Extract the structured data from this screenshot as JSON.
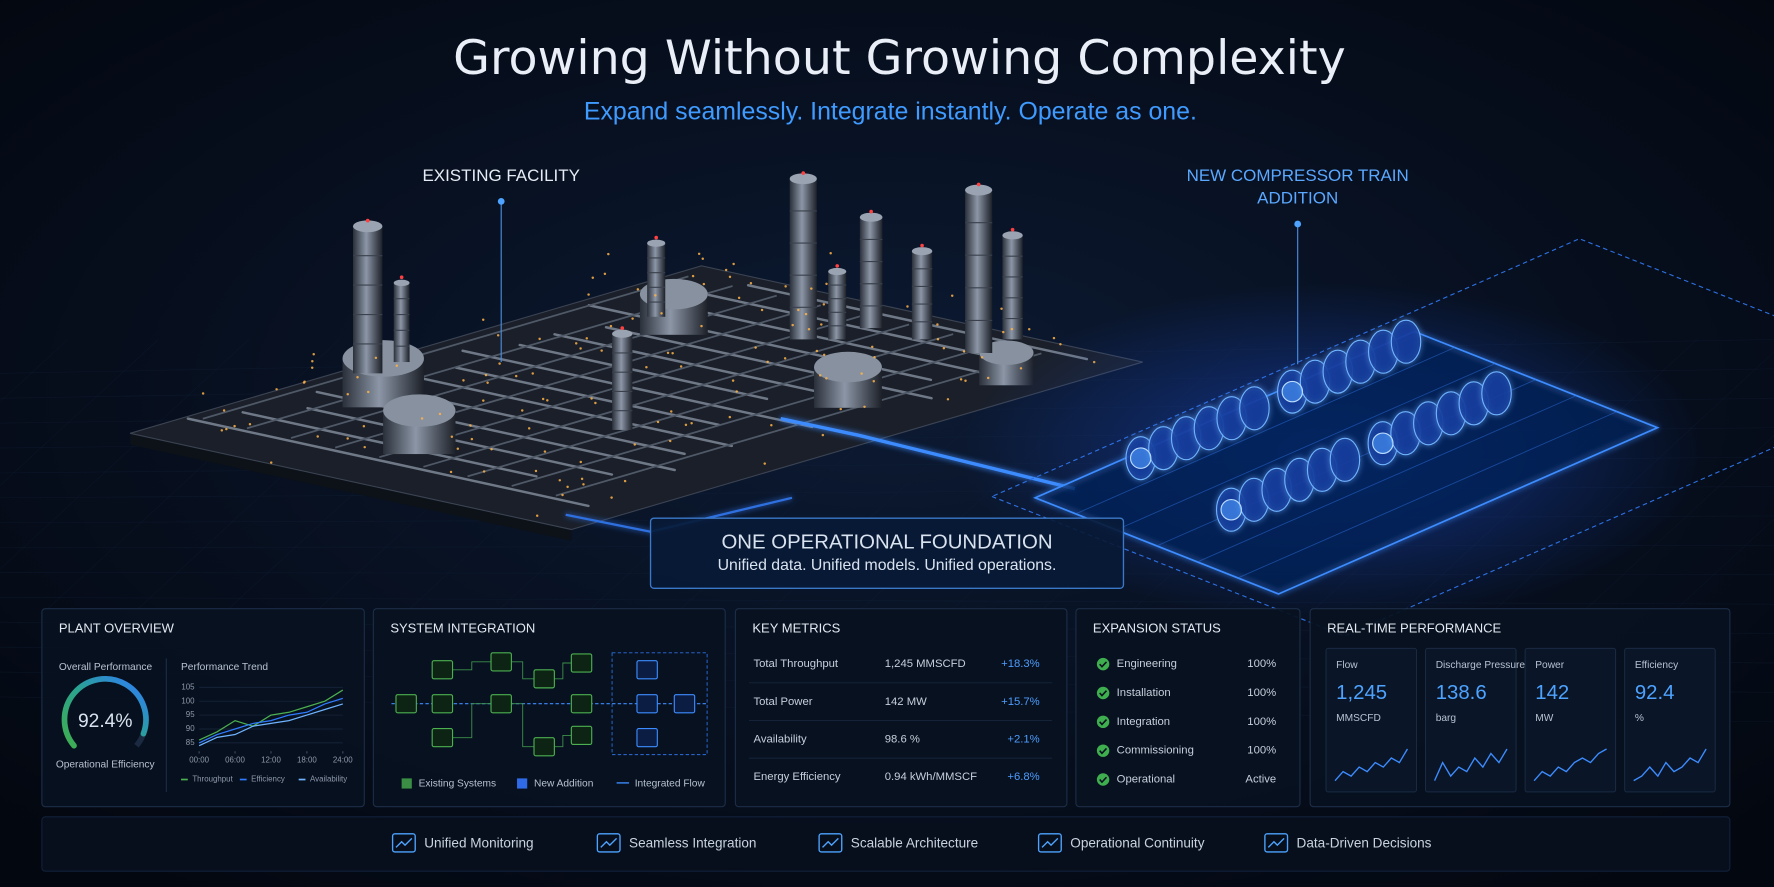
{
  "header": {
    "title": "Growing Without Growing Complexity",
    "subtitle": "Expand seamlessly.  Integrate instantly.  Operate as one."
  },
  "labels": {
    "existing_facility": "EXISTING FACILITY",
    "new_addition": [
      "NEW COMPRESSOR TRAIN",
      "ADDITION"
    ]
  },
  "foundation": {
    "title": "ONE OPERATIONAL FOUNDATION",
    "subtitle": "Unified data. Unified models. Unified operations."
  },
  "plant_overview": {
    "title": "PLANT OVERVIEW",
    "gauge": {
      "label": "Overall Performance",
      "value": 92.4,
      "value_label": "92.4%",
      "caption": "Operational Efficiency"
    },
    "trend": {
      "type": "line",
      "title": "Performance Trend",
      "x": [
        0,
        3,
        6,
        9,
        12,
        15,
        18,
        21,
        24
      ],
      "xlim": [
        0,
        24
      ],
      "xticks": [
        {
          "value": 0,
          "label": "00:00"
        },
        {
          "value": 6,
          "label": "06:00"
        },
        {
          "value": 12,
          "label": "12:00"
        },
        {
          "value": 18,
          "label": "18:00"
        },
        {
          "value": 24,
          "label": "24:00"
        }
      ],
      "ylim": [
        82,
        106
      ],
      "yticks": [
        85,
        90,
        95,
        100,
        105
      ],
      "series": [
        {
          "name": "Throughput",
          "color": "#4caf50",
          "values": [
            86,
            89,
            93,
            91,
            95,
            96,
            98,
            100,
            104
          ]
        },
        {
          "name": "Efficiency",
          "color": "#2f7bff",
          "values": [
            85,
            88,
            90,
            92,
            93,
            95,
            96,
            99,
            101
          ]
        },
        {
          "name": "Availability",
          "color": "#6fb3ff",
          "values": [
            84,
            87,
            88,
            91,
            92,
            93,
            95,
            97,
            99
          ]
        }
      ]
    }
  },
  "system_integration": {
    "title": "SYSTEM INTEGRATION",
    "legend": [
      "Existing Systems",
      "New Addition",
      "Integrated Flow"
    ]
  },
  "key_metrics": {
    "title": "KEY METRICS",
    "rows": [
      [
        "Total Throughput",
        "1,245 MMSCFD",
        "+18.3%"
      ],
      [
        "Total Power",
        "142 MW",
        "+15.7%"
      ],
      [
        "Availability",
        "98.6 %",
        "+2.1%"
      ],
      [
        "Energy Efficiency",
        "0.94 kWh/MMSCF",
        "+6.8%"
      ]
    ]
  },
  "expansion_status": {
    "title": "EXPANSION STATUS",
    "rows": [
      [
        "Engineering",
        "100%"
      ],
      [
        "Installation",
        "100%"
      ],
      [
        "Integration",
        "100%"
      ],
      [
        "Commissioning",
        "100%"
      ],
      [
        "Operational",
        "Active"
      ]
    ]
  },
  "real_time": {
    "title": "REAL-TIME PERFORMANCE",
    "cards": [
      {
        "label": "Flow",
        "value": "1,245",
        "unit": "MMSCFD",
        "trend": [
          2,
          4,
          3,
          5,
          4,
          6,
          5,
          7,
          6,
          9
        ]
      },
      {
        "label": "Discharge Pressure",
        "value": "138.6",
        "unit": "barg",
        "trend": [
          2,
          6,
          3,
          5,
          4,
          7,
          5,
          8,
          6,
          9
        ]
      },
      {
        "label": "Power",
        "value": "142",
        "unit": "MW",
        "trend": [
          1,
          3,
          2,
          4,
          3,
          5,
          6,
          5,
          7,
          8
        ]
      },
      {
        "label": "Efficiency",
        "value": "92.4",
        "unit": "%",
        "trend": [
          2,
          3,
          5,
          3,
          6,
          4,
          5,
          7,
          6,
          9
        ]
      }
    ]
  },
  "footer": [
    "Unified Monitoring",
    "Seamless Integration",
    "Scalable Architecture",
    "Operational Continuity",
    "Data-Driven Decisions"
  ]
}
